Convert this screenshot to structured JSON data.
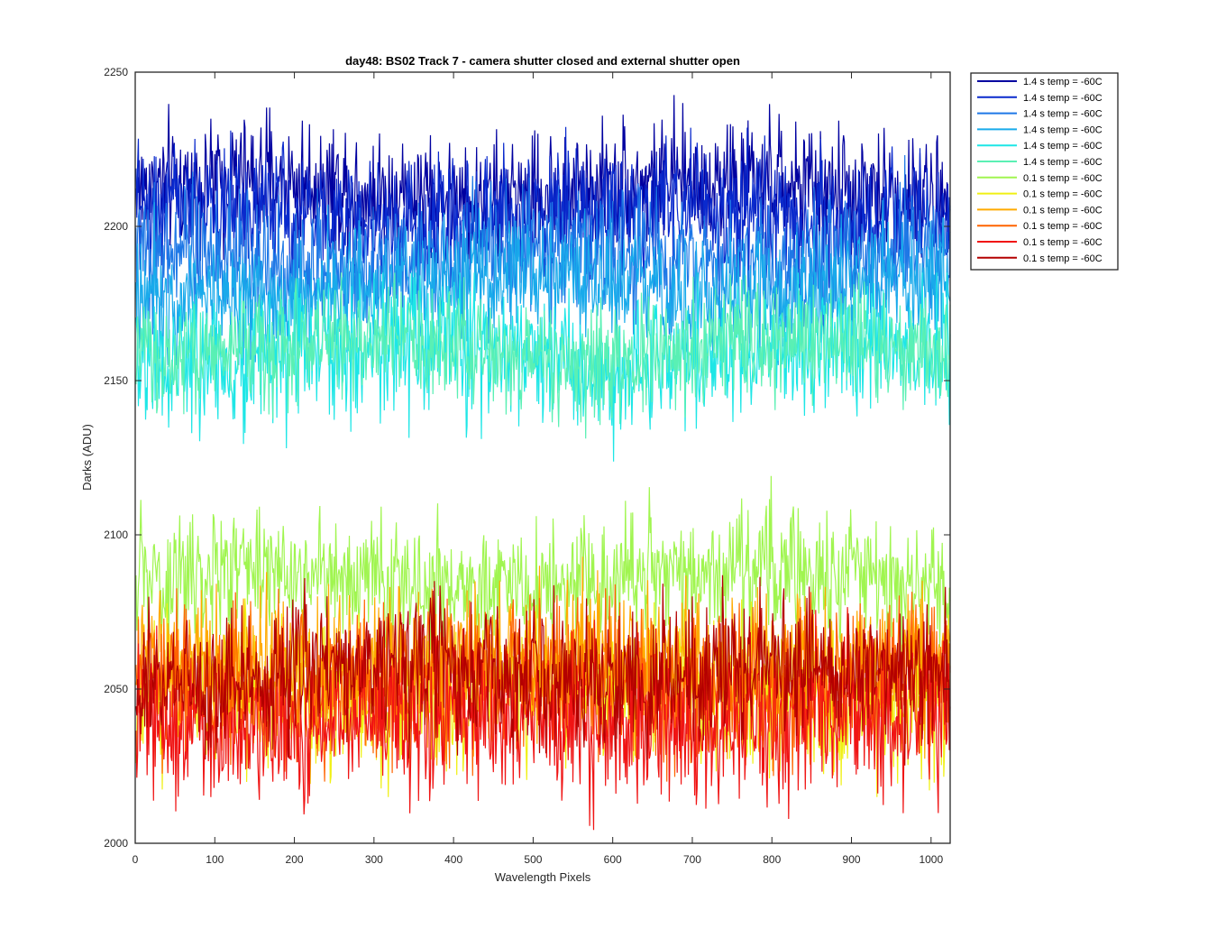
{
  "chart_data": {
    "type": "line",
    "title": "day48: BS02  Track 7 - camera shutter closed and external shutter open",
    "xlabel": "Wavelength Pixels",
    "ylabel": "Darks (ADU)",
    "xlim": [
      0,
      1024
    ],
    "ylim": [
      2000,
      2250
    ],
    "xticks": [
      0,
      100,
      200,
      300,
      400,
      500,
      600,
      700,
      800,
      900,
      1000
    ],
    "yticks": [
      2000,
      2050,
      2100,
      2150,
      2200,
      2250
    ],
    "grid": false,
    "legend_position": "outside-top-right",
    "n_points": 1024,
    "series": [
      {
        "name": "1.4 s temp = -60C",
        "color": "#0000a0",
        "mean": 2212,
        "spread": 10,
        "min": 2188,
        "max": 2250
      },
      {
        "name": "1.4 s temp = -60C",
        "color": "#0a2acd",
        "mean": 2204,
        "spread": 10,
        "min": 2180,
        "max": 2242
      },
      {
        "name": "1.4 s temp = -60C",
        "color": "#1e78e6",
        "mean": 2190,
        "spread": 10,
        "min": 2165,
        "max": 2225
      },
      {
        "name": "1.4 s temp = -60C",
        "color": "#19aaeb",
        "mean": 2180,
        "spread": 10,
        "min": 2155,
        "max": 2215
      },
      {
        "name": "1.4 s temp = -60C",
        "color": "#1ee6e6",
        "mean": 2158,
        "spread": 11,
        "min": 2109,
        "max": 2185
      },
      {
        "name": "1.4 s temp = -60C",
        "color": "#5af0b4",
        "mean": 2160,
        "spread": 9,
        "min": 2128,
        "max": 2185
      },
      {
        "name": "0.1 s temp = -60C",
        "color": "#a0f550",
        "mean": 2085,
        "spread": 10,
        "min": 2060,
        "max": 2123
      },
      {
        "name": "0.1 s temp = -60C",
        "color": "#f0f014",
        "mean": 2048,
        "spread": 12,
        "min": 2015,
        "max": 2095
      },
      {
        "name": "0.1 s temp = -60C",
        "color": "#ffaa00",
        "mean": 2058,
        "spread": 12,
        "min": 2022,
        "max": 2109
      },
      {
        "name": "0.1 s temp = -60C",
        "color": "#ff6400",
        "mean": 2052,
        "spread": 12,
        "min": 2020,
        "max": 2100
      },
      {
        "name": "0.1 s temp = -60C",
        "color": "#f01414",
        "mean": 2040,
        "spread": 12,
        "min": 2001,
        "max": 2106
      },
      {
        "name": "0.1 s temp = -60C",
        "color": "#b40000",
        "mean": 2055,
        "spread": 11,
        "min": 2020,
        "max": 2098
      }
    ]
  }
}
